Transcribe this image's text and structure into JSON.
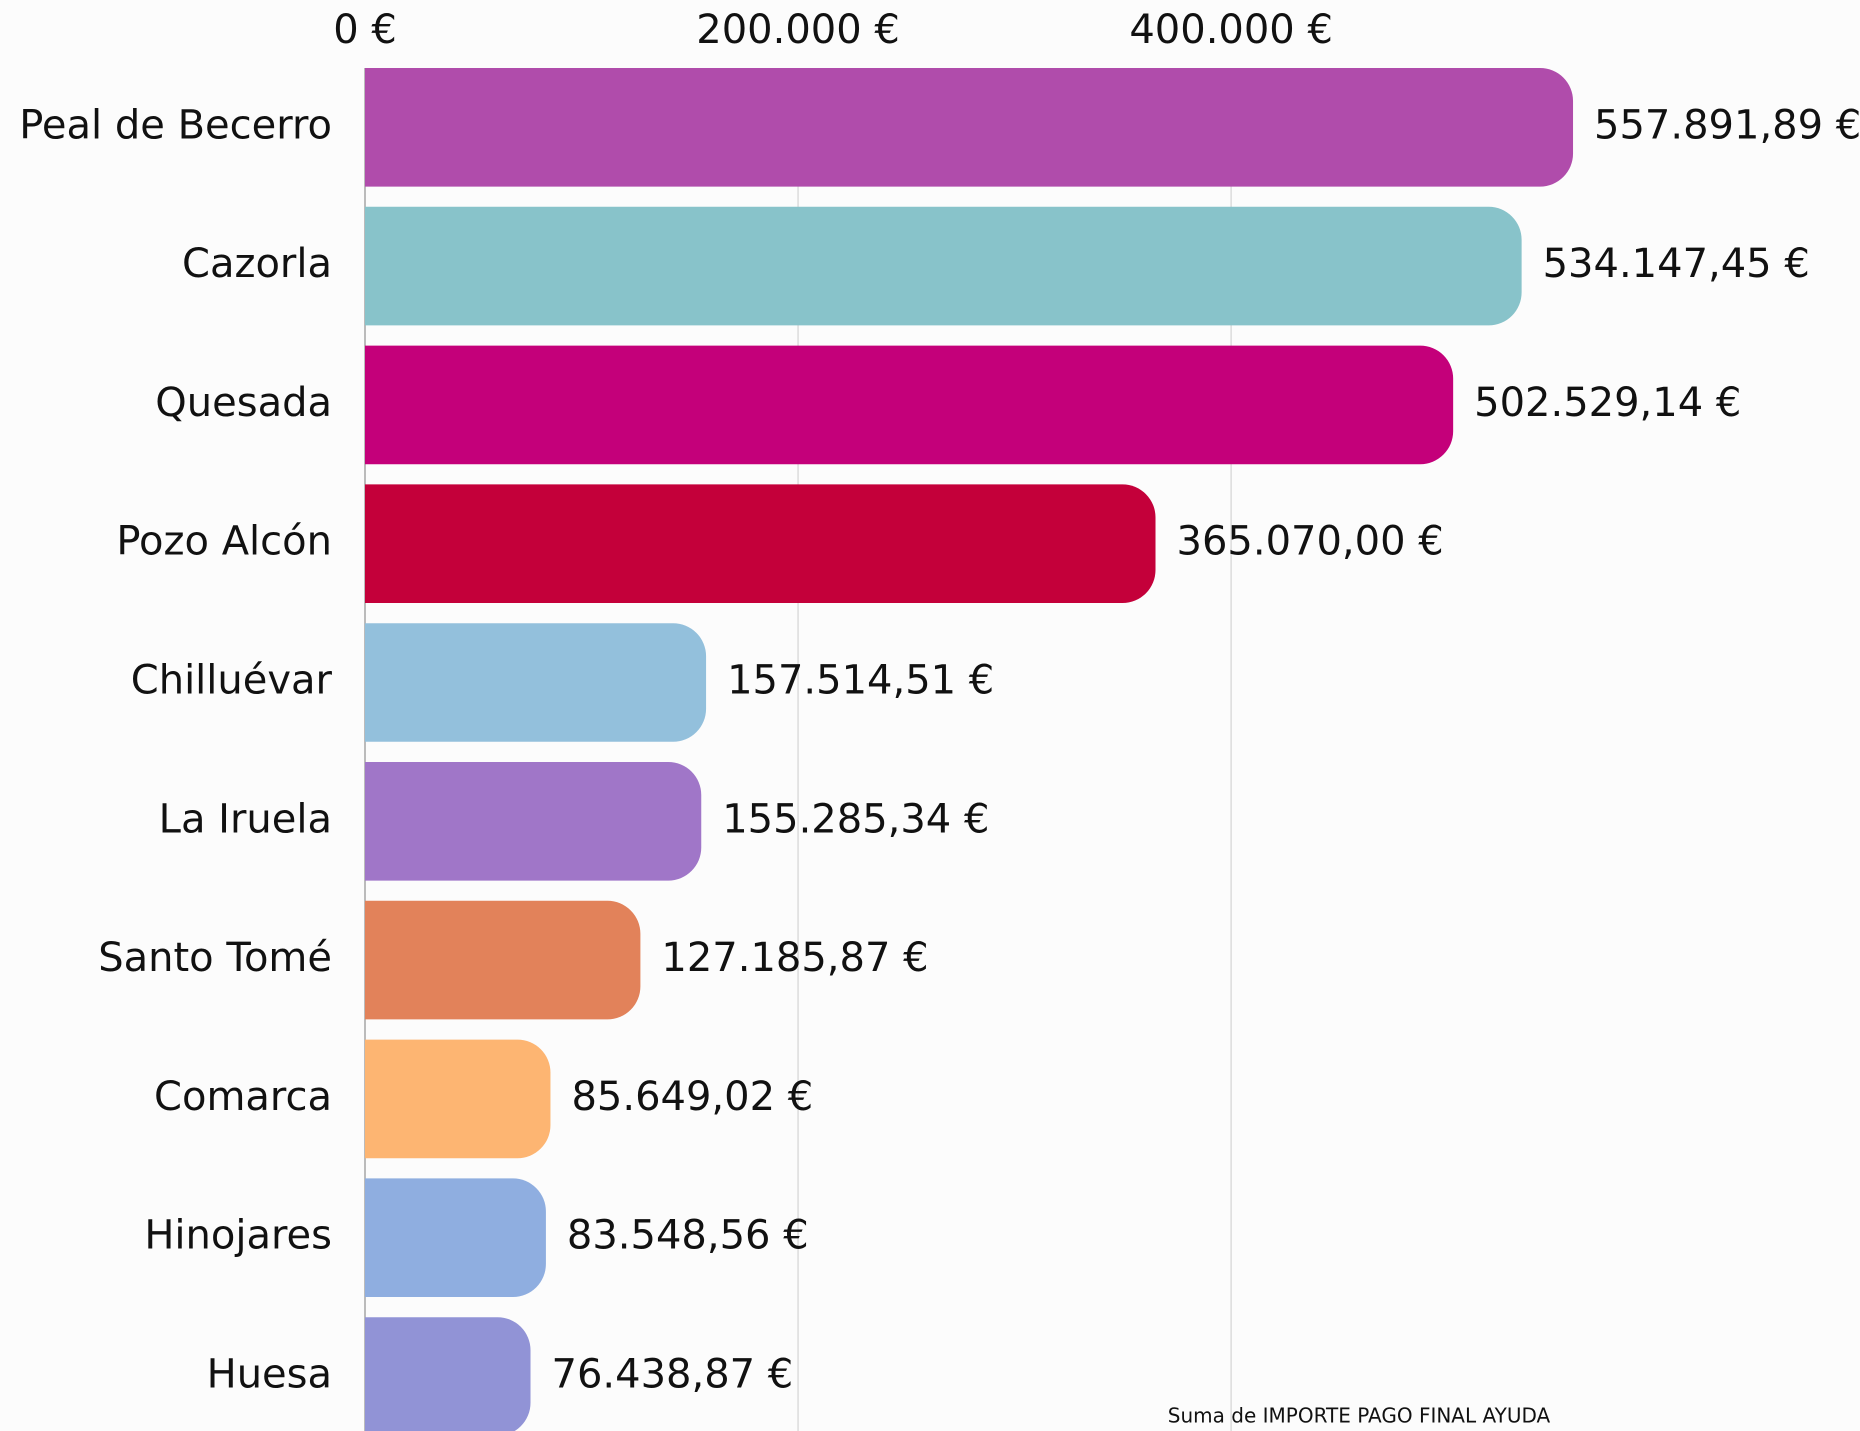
{
  "chart_data": {
    "type": "bar",
    "orientation": "horizontal",
    "x_label": "Suma de IMPORTE PAGO FINAL AYUDA",
    "categories": [
      "Peal de Becerro",
      "Cazorla",
      "Quesada",
      "Pozo Alcón",
      "Chilluévar",
      "La Iruela",
      "Santo Tomé",
      "Comarca",
      "Hinojares",
      "Huesa"
    ],
    "values": [
      557891.89,
      534147.45,
      502529.14,
      365070.0,
      157514.51,
      155285.34,
      127185.87,
      85649.02,
      83548.56,
      76438.87
    ],
    "value_labels": [
      "557.891,89 €",
      "534.147,45 €",
      "502.529,14 €",
      "365.070,00 €",
      "157.514,51 €",
      "155.285,34 €",
      "127.185,87 €",
      "85.649,02 €",
      "83.548,56 €",
      "76.438,87 €"
    ],
    "colors": [
      "#b04cab",
      "#88c3ca",
      "#c4007a",
      "#c4003a",
      "#93c0dc",
      "#a076c8",
      "#e2825a",
      "#fdb572",
      "#8faee0",
      "#9193d6"
    ],
    "xlim": [
      0,
      560000
    ],
    "xticks": [
      {
        "value": 0,
        "label": "0 €"
      },
      {
        "value": 200000,
        "label": "200.000 €"
      },
      {
        "value": 400000,
        "label": "400.000 €"
      }
    ],
    "grid": true
  }
}
